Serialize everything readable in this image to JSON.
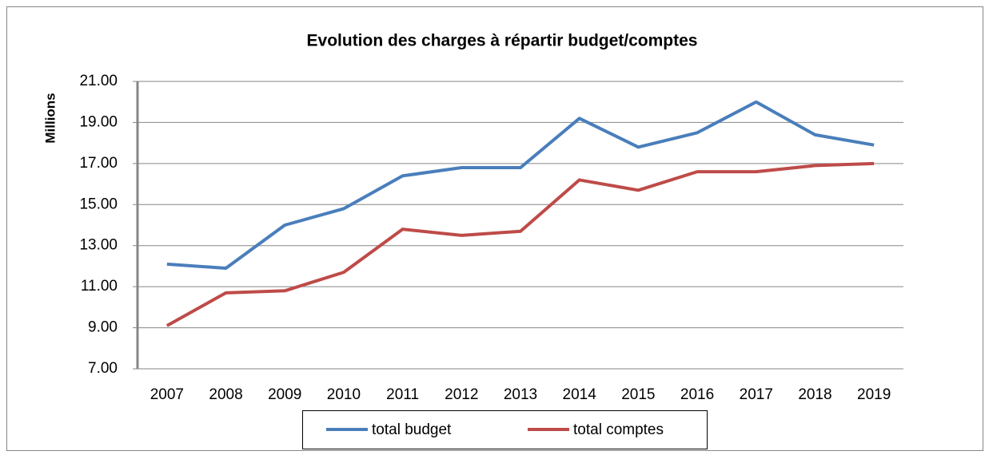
{
  "chart_data": {
    "type": "line",
    "title": "Evolution des charges à répartir budget/comptes",
    "y_label": "Millions",
    "categories": [
      "2007",
      "2008",
      "2009",
      "2010",
      "2011",
      "2012",
      "2013",
      "2014",
      "2015",
      "2016",
      "2017",
      "2018",
      "2019"
    ],
    "series": [
      {
        "name": "total budget",
        "color": "#4a7ebb",
        "values": [
          12.1,
          11.9,
          14.0,
          14.8,
          16.4,
          16.8,
          16.8,
          19.2,
          17.8,
          18.5,
          20.0,
          18.4,
          17.9
        ]
      },
      {
        "name": "total comptes",
        "color": "#be4b48",
        "values": [
          9.1,
          10.7,
          10.8,
          11.7,
          13.8,
          13.5,
          13.7,
          16.2,
          15.7,
          16.6,
          16.6,
          16.9,
          17.0
        ]
      }
    ],
    "ylim": [
      7,
      21
    ],
    "yticks": [
      {
        "value": 7,
        "label": "7.00"
      },
      {
        "value": 9,
        "label": "9.00"
      },
      {
        "value": 11,
        "label": "11.00"
      },
      {
        "value": 13,
        "label": "13.00"
      },
      {
        "value": 15,
        "label": "15.00"
      },
      {
        "value": 17,
        "label": "17.00"
      },
      {
        "value": 19,
        "label": "19.00"
      },
      {
        "value": 21,
        "label": "21.00"
      }
    ],
    "grid": true,
    "legend": "bottom"
  }
}
